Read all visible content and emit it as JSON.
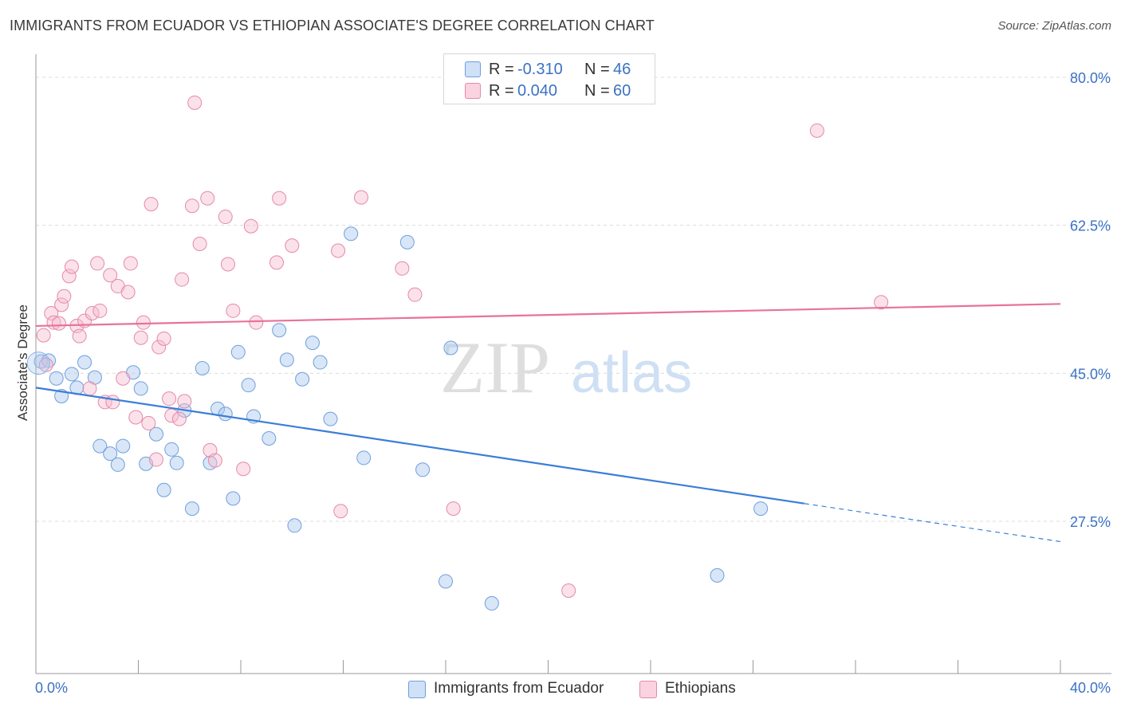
{
  "title": "IMMIGRANTS FROM ECUADOR VS ETHIOPIAN ASSOCIATE'S DEGREE CORRELATION CHART",
  "source": "Source: ZipAtlas.com",
  "watermark": {
    "zip": "ZIP",
    "atlas": "atlas"
  },
  "legend": {
    "rows": [
      {
        "r_label": "R =",
        "r_value": "-0.310",
        "n_label": "N =",
        "n_value": "46",
        "color": "#a9c8f0",
        "border": "#6f9fdc"
      },
      {
        "r_label": "R =",
        "r_value": "0.040",
        "n_label": "N =",
        "n_value": "60",
        "color": "#f7bdd0",
        "border": "#e48aa8"
      }
    ]
  },
  "bottom_legend": [
    {
      "label": "Immigrants from Ecuador",
      "color": "#a9c8f0",
      "border": "#6f9fdc"
    },
    {
      "label": "Ethiopians",
      "color": "#f7bdd0",
      "border": "#e48aa8"
    }
  ],
  "chart_data": {
    "type": "scatter",
    "title": "IMMIGRANTS FROM ECUADOR VS ETHIOPIAN ASSOCIATE'S DEGREE CORRELATION CHART",
    "xlabel": "",
    "ylabel": "Associate's Degree",
    "xlim": [
      0,
      40
    ],
    "ylim": [
      11,
      82
    ],
    "x_tick_labels": [
      "0.0%",
      "40.0%"
    ],
    "y_ticks": [
      27.5,
      45.0,
      62.5,
      80.0
    ],
    "y_tick_labels": [
      "27.5%",
      "45.0%",
      "62.5%",
      "80.0%"
    ],
    "grid": true,
    "legend_position": "top-center",
    "colors": {
      "ecuador": "#3b7dd8",
      "ethiopians": "#e8729a"
    },
    "series": [
      {
        "name": "Immigrants from Ecuador",
        "points": [
          [
            0.2,
            46.4
          ],
          [
            0.5,
            46.5
          ],
          [
            0.8,
            44.4
          ],
          [
            1.0,
            42.3
          ],
          [
            1.4,
            44.9
          ],
          [
            1.6,
            43.3
          ],
          [
            1.9,
            46.3
          ],
          [
            2.3,
            44.5
          ],
          [
            2.5,
            36.4
          ],
          [
            2.9,
            35.5
          ],
          [
            3.2,
            34.2
          ],
          [
            3.4,
            36.4
          ],
          [
            3.8,
            45.1
          ],
          [
            4.1,
            43.2
          ],
          [
            4.3,
            34.3
          ],
          [
            4.7,
            37.8
          ],
          [
            5.0,
            31.2
          ],
          [
            5.3,
            36.0
          ],
          [
            5.5,
            34.4
          ],
          [
            5.8,
            40.6
          ],
          [
            6.1,
            29.0
          ],
          [
            6.5,
            45.6
          ],
          [
            6.8,
            34.4
          ],
          [
            7.1,
            40.8
          ],
          [
            7.4,
            40.2
          ],
          [
            7.7,
            30.2
          ],
          [
            7.9,
            47.5
          ],
          [
            8.3,
            43.6
          ],
          [
            8.5,
            39.9
          ],
          [
            9.1,
            37.3
          ],
          [
            9.5,
            50.1
          ],
          [
            9.8,
            46.6
          ],
          [
            10.1,
            27.0
          ],
          [
            10.4,
            44.3
          ],
          [
            10.8,
            48.6
          ],
          [
            11.1,
            46.3
          ],
          [
            11.5,
            39.6
          ],
          [
            12.3,
            61.5
          ],
          [
            12.8,
            35.0
          ],
          [
            14.5,
            60.5
          ],
          [
            15.1,
            33.6
          ],
          [
            16.0,
            20.4
          ],
          [
            16.2,
            48.0
          ],
          [
            17.8,
            17.8
          ],
          [
            26.6,
            21.1
          ],
          [
            28.3,
            29.0
          ]
        ]
      },
      {
        "name": "Ethiopians",
        "points": [
          [
            0.3,
            49.5
          ],
          [
            0.4,
            46.0
          ],
          [
            0.6,
            52.1
          ],
          [
            0.7,
            51.0
          ],
          [
            0.9,
            50.9
          ],
          [
            1.0,
            53.1
          ],
          [
            1.1,
            54.1
          ],
          [
            1.3,
            56.5
          ],
          [
            1.4,
            57.6
          ],
          [
            1.6,
            50.6
          ],
          [
            1.7,
            49.4
          ],
          [
            1.9,
            51.2
          ],
          [
            2.1,
            43.2
          ],
          [
            2.2,
            52.1
          ],
          [
            2.4,
            58.0
          ],
          [
            2.5,
            52.4
          ],
          [
            2.7,
            41.6
          ],
          [
            2.9,
            56.6
          ],
          [
            3.0,
            41.6
          ],
          [
            3.2,
            55.3
          ],
          [
            3.4,
            44.4
          ],
          [
            3.6,
            54.6
          ],
          [
            3.7,
            58.0
          ],
          [
            3.9,
            39.8
          ],
          [
            4.1,
            49.2
          ],
          [
            4.2,
            51.0
          ],
          [
            4.4,
            39.1
          ],
          [
            4.5,
            65.0
          ],
          [
            4.7,
            34.8
          ],
          [
            4.8,
            48.1
          ],
          [
            5.0,
            49.1
          ],
          [
            5.2,
            42.0
          ],
          [
            5.3,
            40.0
          ],
          [
            5.6,
            39.6
          ],
          [
            5.7,
            56.1
          ],
          [
            5.8,
            41.7
          ],
          [
            6.1,
            64.8
          ],
          [
            6.2,
            77.0
          ],
          [
            6.4,
            60.3
          ],
          [
            6.7,
            65.7
          ],
          [
            6.8,
            35.9
          ],
          [
            7.0,
            34.7
          ],
          [
            7.4,
            63.5
          ],
          [
            7.5,
            57.9
          ],
          [
            7.7,
            52.4
          ],
          [
            8.1,
            33.7
          ],
          [
            8.4,
            62.4
          ],
          [
            8.6,
            51.0
          ],
          [
            9.4,
            58.1
          ],
          [
            9.5,
            65.7
          ],
          [
            10.0,
            60.1
          ],
          [
            11.8,
            59.5
          ],
          [
            11.9,
            28.7
          ],
          [
            12.7,
            65.8
          ],
          [
            14.3,
            57.4
          ],
          [
            14.8,
            54.3
          ],
          [
            16.3,
            29.0
          ],
          [
            20.8,
            19.3
          ],
          [
            30.5,
            73.7
          ],
          [
            33.0,
            53.4
          ]
        ]
      }
    ],
    "trend_lines": [
      {
        "name": "Immigrants from Ecuador",
        "solid": [
          [
            0,
            43.3
          ],
          [
            30.0,
            29.6
          ]
        ],
        "dashed": [
          [
            30.0,
            29.6
          ],
          [
            40.0,
            25.1
          ]
        ]
      },
      {
        "name": "Ethiopians",
        "solid": [
          [
            0,
            50.6
          ],
          [
            40.0,
            53.2
          ]
        ]
      }
    ]
  }
}
